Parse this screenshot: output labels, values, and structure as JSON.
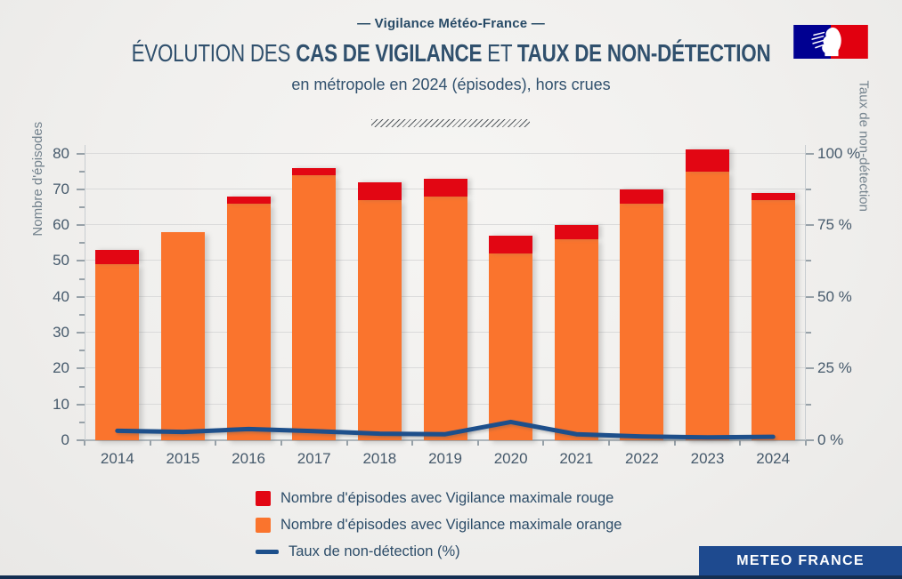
{
  "header": {
    "overline": "— Vigilance Météo-France —",
    "title_light_1": "ÉVOLUTION DES ",
    "title_bold_1": "CAS DE VIGILANCE",
    "title_light_2": " ET ",
    "title_bold_2": "TAUX DE NON-DÉTECTION",
    "subtitle": "en métropole en 2024 (épisodes), hors crues"
  },
  "colors": {
    "orange": "#fa742d",
    "red": "#e20613",
    "line_blue": "#1d4f8b",
    "brand_box": "#1e4a8f",
    "bottom_strip": "#132e52",
    "flag_blue": "#000091",
    "flag_red": "#e1000f"
  },
  "chart_data": {
    "type": "bar",
    "title": "Évolution des cas de vigilance et taux de non-détection, en métropole en 2024 (épisodes), hors crues",
    "categories": [
      "2014",
      "2015",
      "2016",
      "2017",
      "2018",
      "2019",
      "2020",
      "2021",
      "2022",
      "2023",
      "2024"
    ],
    "series": [
      {
        "name": "Nombre d'épisodes avec Vigilance maximale rouge",
        "type": "bar",
        "stack": "episodes",
        "color": "#e20613",
        "values": [
          4,
          0,
          2,
          2,
          5,
          5,
          5,
          4,
          4,
          6,
          2
        ]
      },
      {
        "name": "Nombre d'épisodes avec Vigilance maximale orange",
        "type": "bar",
        "stack": "episodes",
        "color": "#fa742d",
        "values": [
          49,
          58,
          66,
          74,
          67,
          68,
          52,
          56,
          66,
          75,
          67
        ]
      },
      {
        "name": "Taux de non-détection (%)",
        "type": "line",
        "axis": "right",
        "color": "#1d4f8b",
        "values": [
          3.3,
          2.9,
          3.9,
          3.2,
          2.3,
          2.1,
          6.4,
          2.1,
          1.3,
          1.0,
          1.2
        ]
      }
    ],
    "stacked_totals": [
      53,
      58,
      68,
      76,
      72,
      73,
      57,
      60,
      70,
      81,
      69
    ],
    "left_axis": {
      "label": "Nombre d'épisodes",
      "ticks": [
        0,
        10,
        20,
        30,
        40,
        50,
        60,
        70,
        80
      ],
      "minor_step": 5,
      "range": [
        0,
        82.5
      ]
    },
    "right_axis": {
      "label": "Taux de non-détection",
      "tick_labels": [
        "0 %",
        "25 %",
        "50 %",
        "75 %",
        "100 %"
      ],
      "ticks_pct": [
        0,
        25,
        50,
        75,
        100
      ],
      "minor_step_pct": 12.5,
      "range_pct": [
        0,
        103
      ]
    },
    "grid": "horizontal",
    "legend_position": "bottom"
  },
  "legend": {
    "items": [
      {
        "label": "Nombre d'épisodes avec Vigilance maximale rouge",
        "swatch": "red-square"
      },
      {
        "label": "Nombre d'épisodes avec Vigilance maximale orange",
        "swatch": "orange-square"
      },
      {
        "label": "Taux de non-détection (%)",
        "swatch": "blue-line"
      }
    ]
  },
  "footer": {
    "brand": "METEO FRANCE"
  }
}
